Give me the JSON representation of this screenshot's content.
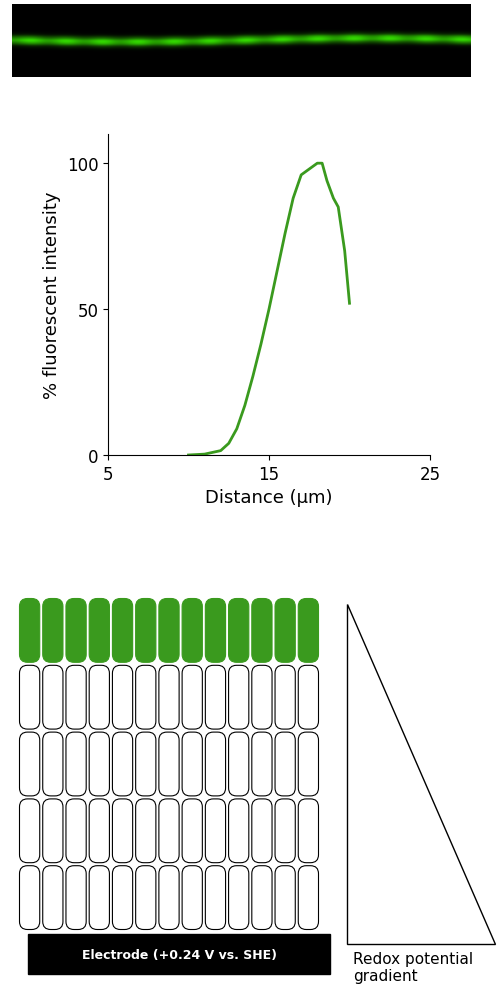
{
  "chart_data": {
    "type": "line",
    "color": "#3a9a1e",
    "x": [
      10,
      11,
      12,
      12.5,
      13,
      13.5,
      14,
      14.5,
      15,
      15.5,
      16,
      16.5,
      17,
      17.5,
      18,
      18.3,
      18.6,
      19,
      19.3,
      19.7,
      20
    ],
    "values": [
      0,
      0.3,
      1.5,
      4,
      9,
      17,
      27,
      38,
      50,
      63,
      76,
      88,
      96,
      98,
      100,
      100,
      94,
      88,
      85,
      70,
      52
    ],
    "xlabel": "Distance (µm)",
    "ylabel": "% fluorescent intensity",
    "xlim": [
      5,
      25
    ],
    "xticks": [
      5,
      15,
      25
    ],
    "ylim": [
      0,
      110
    ],
    "yticks": [
      0,
      50,
      100
    ],
    "grid": false
  },
  "diagram": {
    "electrode_label": "Electrode (+0.24 V vs. SHE)",
    "gradient_label": "Redox potential gradient"
  }
}
